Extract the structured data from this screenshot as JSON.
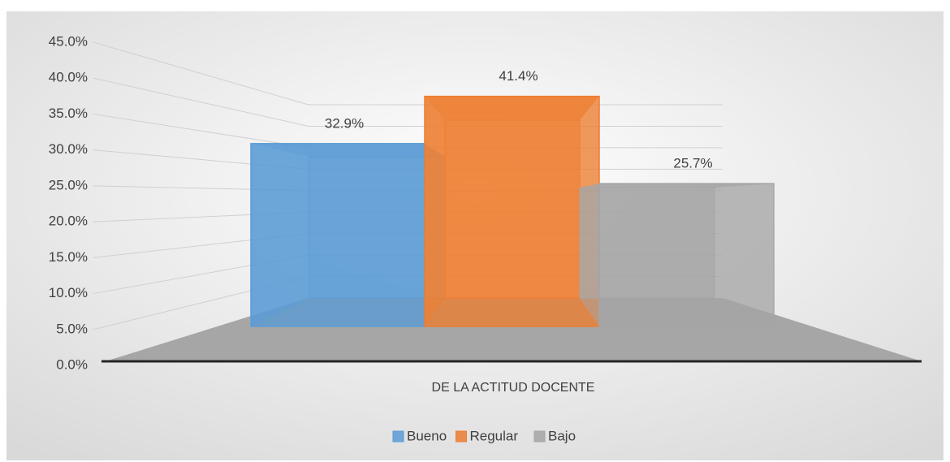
{
  "chart_data": {
    "type": "bar3d",
    "categories": [
      "DE LA ACTITUD DOCENTE"
    ],
    "series": [
      {
        "name": "Bueno",
        "color": "#5b9bd5",
        "values": [
          32.9
        ],
        "value_labels": [
          "32.9%"
        ]
      },
      {
        "name": "Regular",
        "color": "#ed7d31",
        "values": [
          41.4
        ],
        "value_labels": [
          "41.4%"
        ]
      },
      {
        "name": "Bajo",
        "color": "#a5a5a5",
        "values": [
          25.7
        ],
        "value_labels": [
          "25.7%"
        ]
      }
    ],
    "ylim": [
      0,
      45
    ],
    "yticks": [
      {
        "value": 0,
        "label": "0.0%"
      },
      {
        "value": 5,
        "label": "5.0%"
      },
      {
        "value": 10,
        "label": "10.0%"
      },
      {
        "value": 15,
        "label": "15.0%"
      },
      {
        "value": 20,
        "label": "20.0%"
      },
      {
        "value": 25,
        "label": "25.0%"
      },
      {
        "value": 30,
        "label": "30.0%"
      },
      {
        "value": 35,
        "label": "35.0%"
      },
      {
        "value": 40,
        "label": "40.0%"
      },
      {
        "value": 45,
        "label": "45.0%"
      }
    ],
    "grid": true,
    "legend": "bottom"
  }
}
